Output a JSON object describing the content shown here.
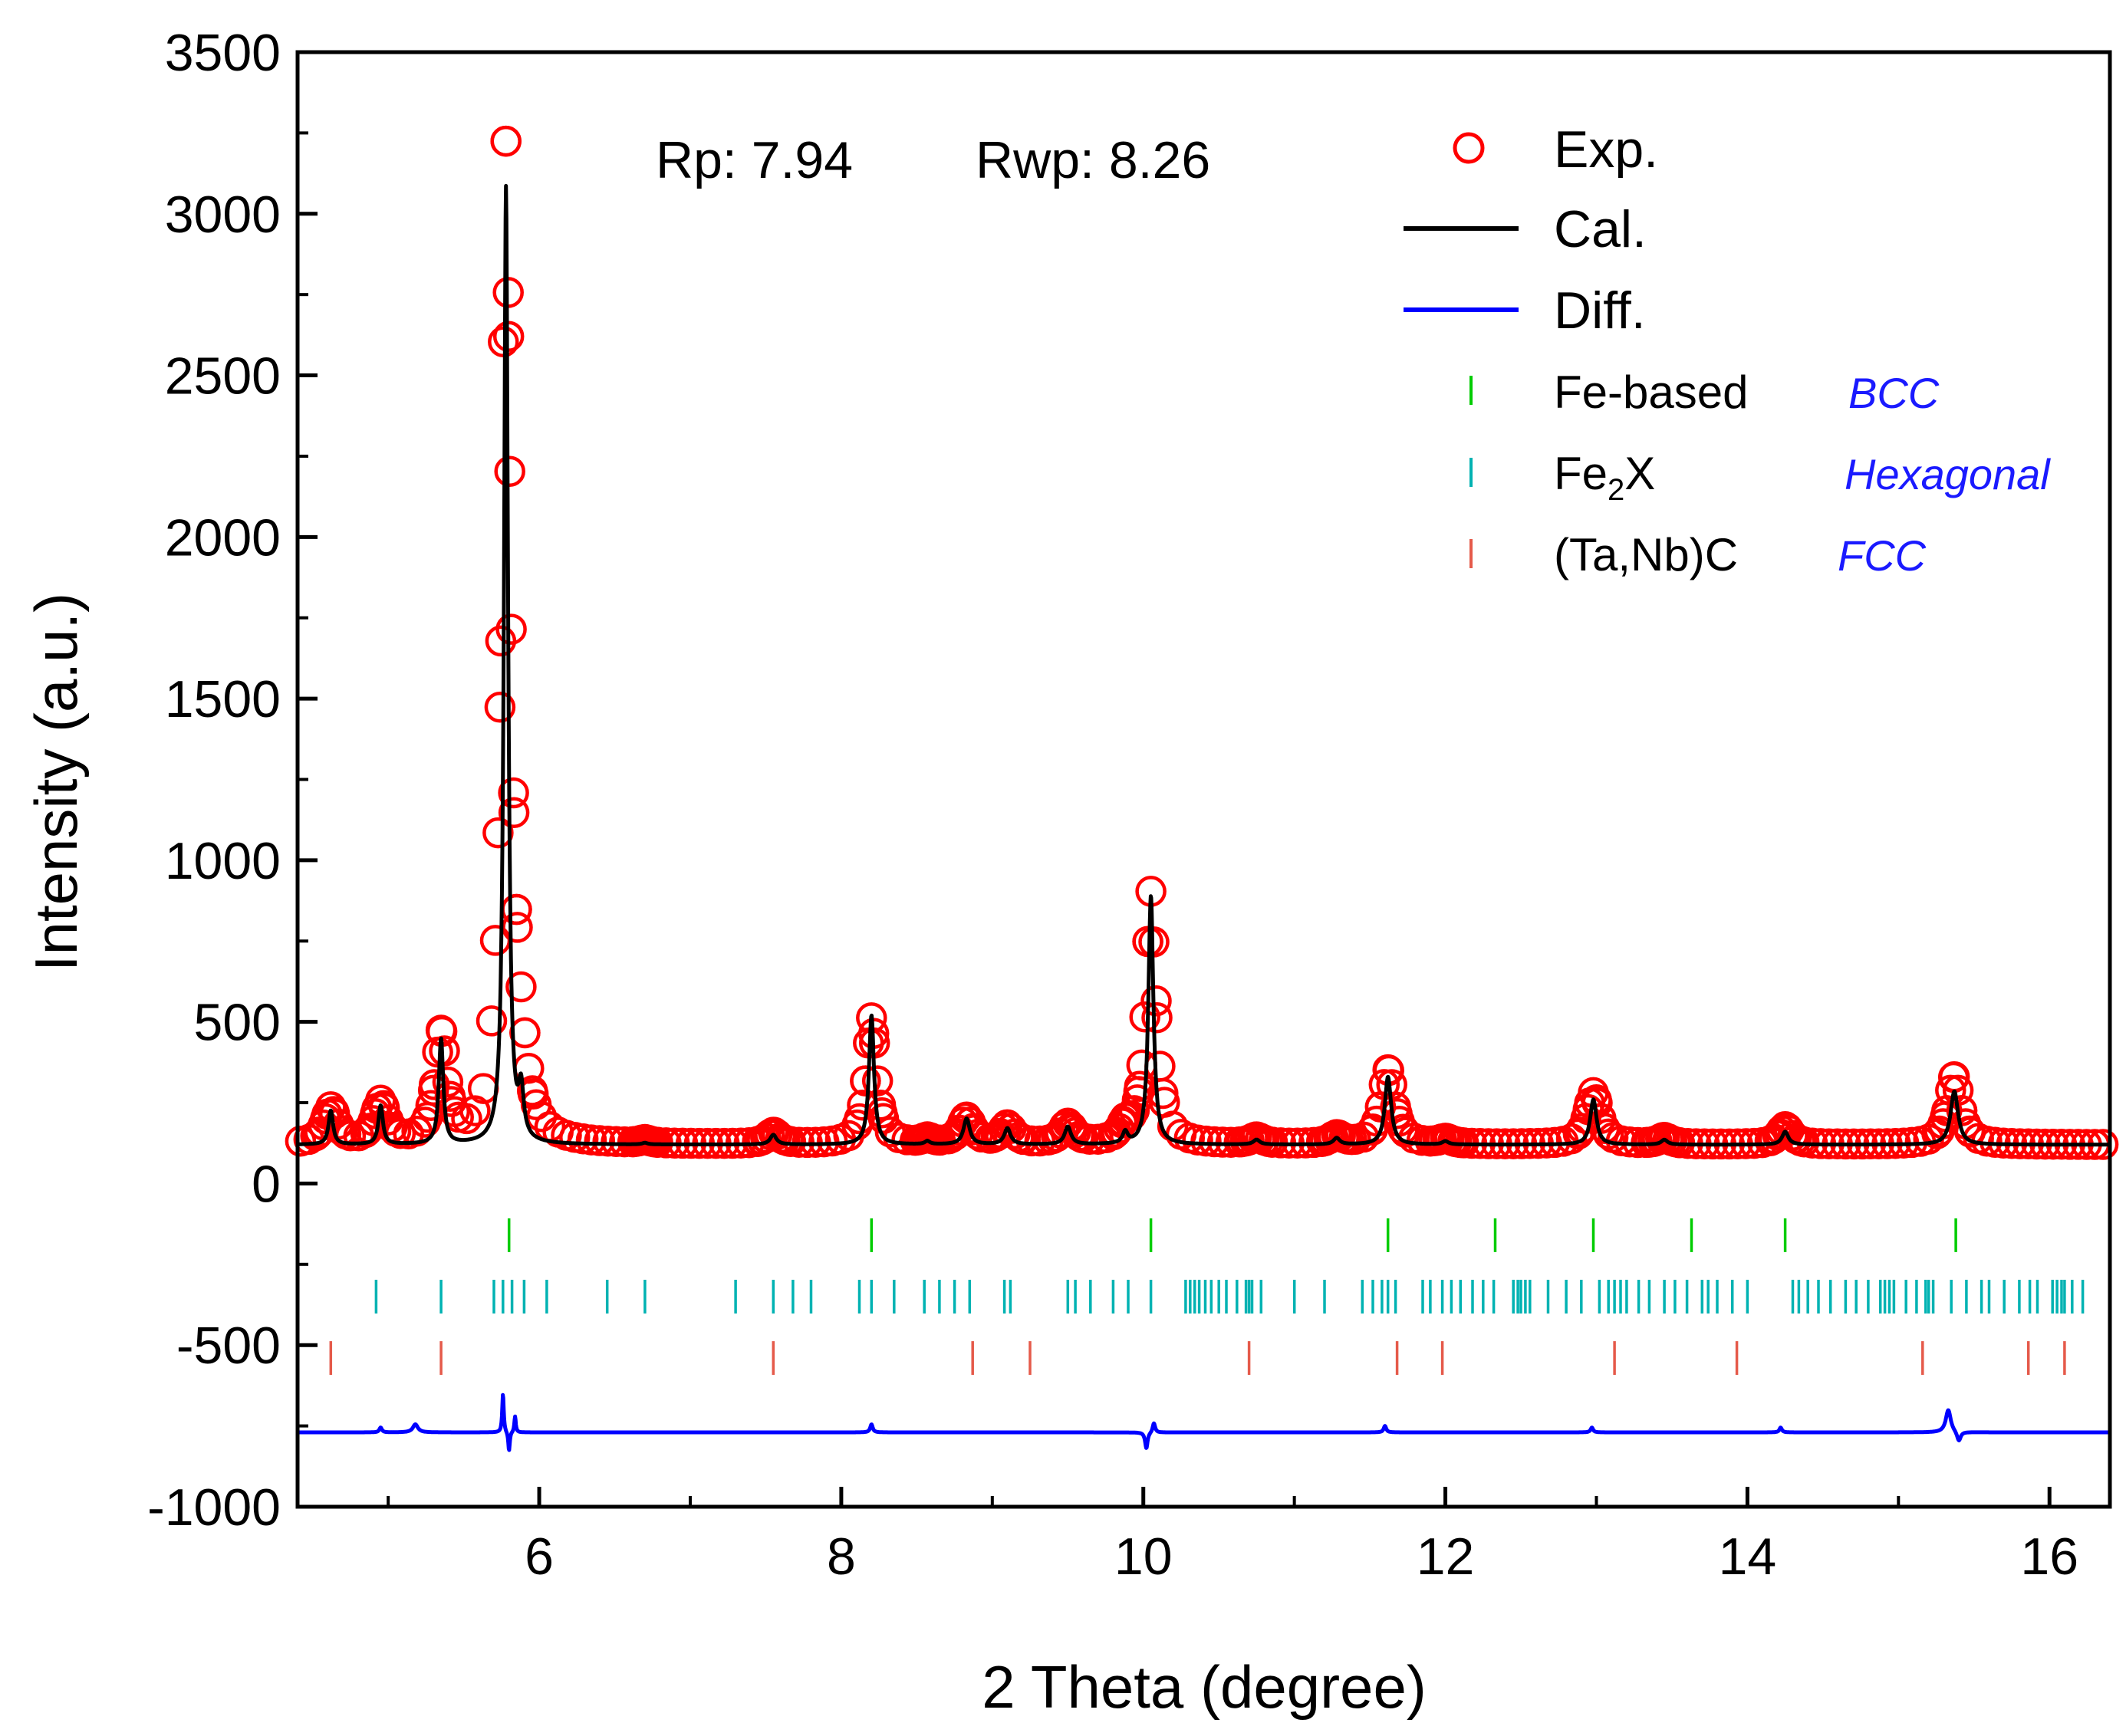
{
  "chart_data": {
    "type": "line",
    "title": "",
    "xlabel": "2 Theta (degree)",
    "ylabel": "Intensity (a.u.)",
    "xlim": [
      4.4,
      16.4
    ],
    "ylim": [
      -1000,
      3500
    ],
    "xticks": [
      6,
      8,
      10,
      12,
      14,
      16
    ],
    "yticks": [
      3500,
      3000,
      2500,
      2000,
      1500,
      1000,
      500,
      0,
      -500,
      -1000
    ],
    "annotations": {
      "rp": "Rp: 7.94",
      "rwp": "Rwp: 8.26"
    },
    "legend": {
      "position": "top-right",
      "entries": [
        {
          "label": "Exp.",
          "marker": "circle",
          "color": "#ff0000"
        },
        {
          "label": "Cal.",
          "marker": "line",
          "color": "#000000"
        },
        {
          "label": "Diff.",
          "marker": "line",
          "color": "#0000ff"
        },
        {
          "label": "Fe-based",
          "marker": "tick",
          "color": "#00cc00",
          "phase": "BCC"
        },
        {
          "label_main": "Fe",
          "label_sub": "2",
          "label_end": "X",
          "marker": "tick",
          "color": "#00b2b2",
          "phase": "Hexagonal"
        },
        {
          "label": "(Ta,Nb)C",
          "marker": "tick",
          "color": "#e55a4a",
          "phase": "FCC"
        }
      ]
    },
    "series": [
      {
        "name": "Exp.",
        "style": "circles",
        "color": "#ff0000",
        "baseline": 120,
        "peaks": [
          [
            4.62,
            230,
            0.05
          ],
          [
            4.95,
            245,
            0.05
          ],
          [
            5.35,
            450,
            0.045
          ],
          [
            5.78,
            3190,
            0.035
          ],
          [
            5.88,
            270,
            0.05
          ],
          [
            6.7,
            130,
            0.04
          ],
          [
            7.55,
            155,
            0.05
          ],
          [
            8.2,
            510,
            0.04
          ],
          [
            8.57,
            135,
            0.04
          ],
          [
            8.83,
            200,
            0.05
          ],
          [
            9.1,
            175,
            0.05
          ],
          [
            9.5,
            180,
            0.05
          ],
          [
            9.88,
            160,
            0.04
          ],
          [
            10.05,
            900,
            0.04
          ],
          [
            10.75,
            140,
            0.05
          ],
          [
            11.28,
            145,
            0.05
          ],
          [
            11.62,
            350,
            0.05
          ],
          [
            12.0,
            135,
            0.05
          ],
          [
            12.98,
            280,
            0.05
          ],
          [
            13.45,
            140,
            0.05
          ],
          [
            14.25,
            175,
            0.05
          ],
          [
            15.37,
            330,
            0.05
          ]
        ]
      },
      {
        "name": "Cal.",
        "style": "line",
        "color": "#000000",
        "baseline": 120,
        "peaks": [
          [
            4.62,
            225,
            0.018
          ],
          [
            4.95,
            240,
            0.018
          ],
          [
            5.35,
            445,
            0.018
          ],
          [
            5.78,
            3080,
            0.016
          ],
          [
            5.88,
            265,
            0.02
          ],
          [
            6.7,
            125,
            0.02
          ],
          [
            7.55,
            150,
            0.025
          ],
          [
            8.2,
            520,
            0.02
          ],
          [
            8.57,
            130,
            0.02
          ],
          [
            8.83,
            200,
            0.025
          ],
          [
            9.1,
            170,
            0.025
          ],
          [
            9.5,
            175,
            0.025
          ],
          [
            9.88,
            155,
            0.02
          ],
          [
            10.05,
            890,
            0.02
          ],
          [
            10.75,
            135,
            0.025
          ],
          [
            11.28,
            140,
            0.025
          ],
          [
            11.62,
            330,
            0.025
          ],
          [
            12.0,
            130,
            0.025
          ],
          [
            12.98,
            260,
            0.025
          ],
          [
            13.45,
            135,
            0.025
          ],
          [
            14.25,
            160,
            0.025
          ],
          [
            15.37,
            285,
            0.03
          ]
        ]
      },
      {
        "name": "Diff.",
        "style": "line",
        "color": "#0000ff",
        "baseline": -770,
        "peaks": [
          [
            4.95,
            -755,
            0.01
          ],
          [
            5.18,
            -745,
            0.02
          ],
          [
            5.76,
            -650,
            0.006
          ],
          [
            5.8,
            -830,
            0.006
          ],
          [
            5.84,
            -720,
            0.006
          ],
          [
            8.2,
            -745,
            0.01
          ],
          [
            10.02,
            -820,
            0.01
          ],
          [
            10.07,
            -740,
            0.01
          ],
          [
            11.6,
            -750,
            0.01
          ],
          [
            12.97,
            -755,
            0.01
          ],
          [
            14.22,
            -755,
            0.01
          ],
          [
            15.33,
            -700,
            0.02
          ],
          [
            15.4,
            -800,
            0.015
          ]
        ]
      }
    ],
    "phase_ticks": [
      {
        "name": "Fe-based",
        "color": "#00cc00",
        "y": -160,
        "positions": [
          5.8,
          8.2,
          10.05,
          11.62,
          12.33,
          12.98,
          13.63,
          14.25,
          15.38
        ]
      },
      {
        "name": "Fe2X",
        "color": "#00b2b2",
        "y": -350,
        "positions": [
          4.92,
          5.35,
          5.7,
          5.76,
          5.82,
          5.9,
          6.05,
          6.45,
          6.7,
          7.3,
          7.55,
          7.68,
          7.8,
          8.12,
          8.2,
          8.35,
          8.55,
          8.65,
          8.75,
          8.85,
          9.08,
          9.12,
          9.5,
          9.55,
          9.65,
          9.8,
          9.9,
          10.05,
          10.28,
          10.31,
          10.34,
          10.37,
          10.41,
          10.45,
          10.5,
          10.55,
          10.62,
          10.68,
          10.7,
          10.72,
          10.78,
          11.0,
          11.2,
          11.45,
          11.52,
          11.58,
          11.62,
          11.67,
          11.85,
          11.9,
          11.98,
          12.04,
          12.1,
          12.18,
          12.25,
          12.32,
          12.45,
          12.48,
          12.5,
          12.53,
          12.56,
          12.68,
          12.8,
          12.9,
          13.02,
          13.08,
          13.12,
          13.16,
          13.2,
          13.28,
          13.35,
          13.45,
          13.52,
          13.6,
          13.7,
          13.74,
          13.8,
          13.9,
          14.0,
          14.3,
          14.34,
          14.4,
          14.47,
          14.55,
          14.65,
          14.72,
          14.8,
          14.88,
          14.91,
          14.94,
          14.97,
          15.05,
          15.12,
          15.18,
          15.2,
          15.23,
          15.35,
          15.45,
          15.55,
          15.6,
          15.7,
          15.8,
          15.87,
          15.92,
          16.02,
          16.05,
          16.08,
          16.1,
          16.15,
          16.22
        ]
      },
      {
        "name": "(Ta,Nb)C",
        "color": "#e55a4a",
        "y": -540,
        "positions": [
          4.62,
          5.35,
          7.55,
          8.87,
          9.25,
          10.7,
          11.68,
          11.98,
          13.12,
          13.93,
          15.16,
          15.86,
          16.1
        ]
      }
    ]
  }
}
